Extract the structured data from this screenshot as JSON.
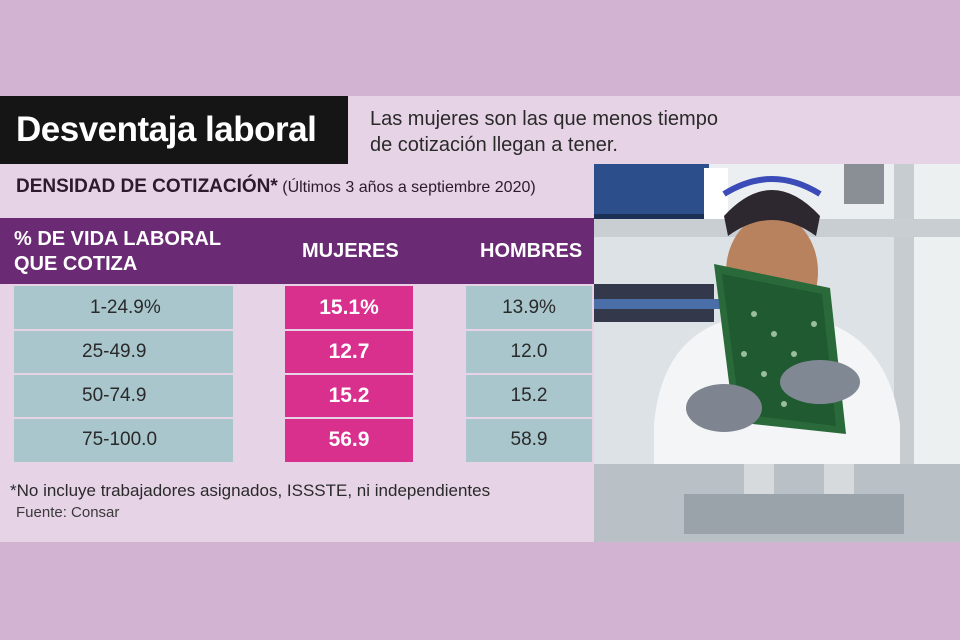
{
  "header": {
    "title": "Desventaja laboral",
    "subtitle_line1": "Las mujeres son las que menos tiempo",
    "subtitle_line2": "de cotización llegan a tener."
  },
  "density": {
    "title": "DENSIDAD DE COTIZACIÓN*",
    "note": " (Últimos 3 años a septiembre 2020)"
  },
  "table_header": {
    "col1_line1": "% DE VIDA LABORAL",
    "col1_line2": "QUE COTIZA",
    "col2": "MUJERES",
    "col3": "HOMBRES"
  },
  "footnote": "*No incluye trabajadores asignados, ISSSTE, ni independientes",
  "source": "Fuente: Consar",
  "colors": {
    "page_bg": "#d3b3d2",
    "card_bg": "#e6d3e6",
    "title_bg": "#151515",
    "header_band": "#6a2a74",
    "women_accent": "#d92f8d",
    "range_cell": "#a8c6cc"
  },
  "chart_data": {
    "type": "table",
    "columns": [
      "% DE VIDA LABORAL QUE COTIZA",
      "MUJERES",
      "HOMBRES"
    ],
    "rows": [
      {
        "range": "1-24.9%",
        "women": "15.1%",
        "men": "13.9%"
      },
      {
        "range": "25-49.9",
        "women": "12.7",
        "men": "12.0"
      },
      {
        "range": "50-74.9",
        "women": "15.2",
        "men": "15.2"
      },
      {
        "range": "75-100.0",
        "women": "56.9",
        "men": "58.9"
      }
    ]
  }
}
